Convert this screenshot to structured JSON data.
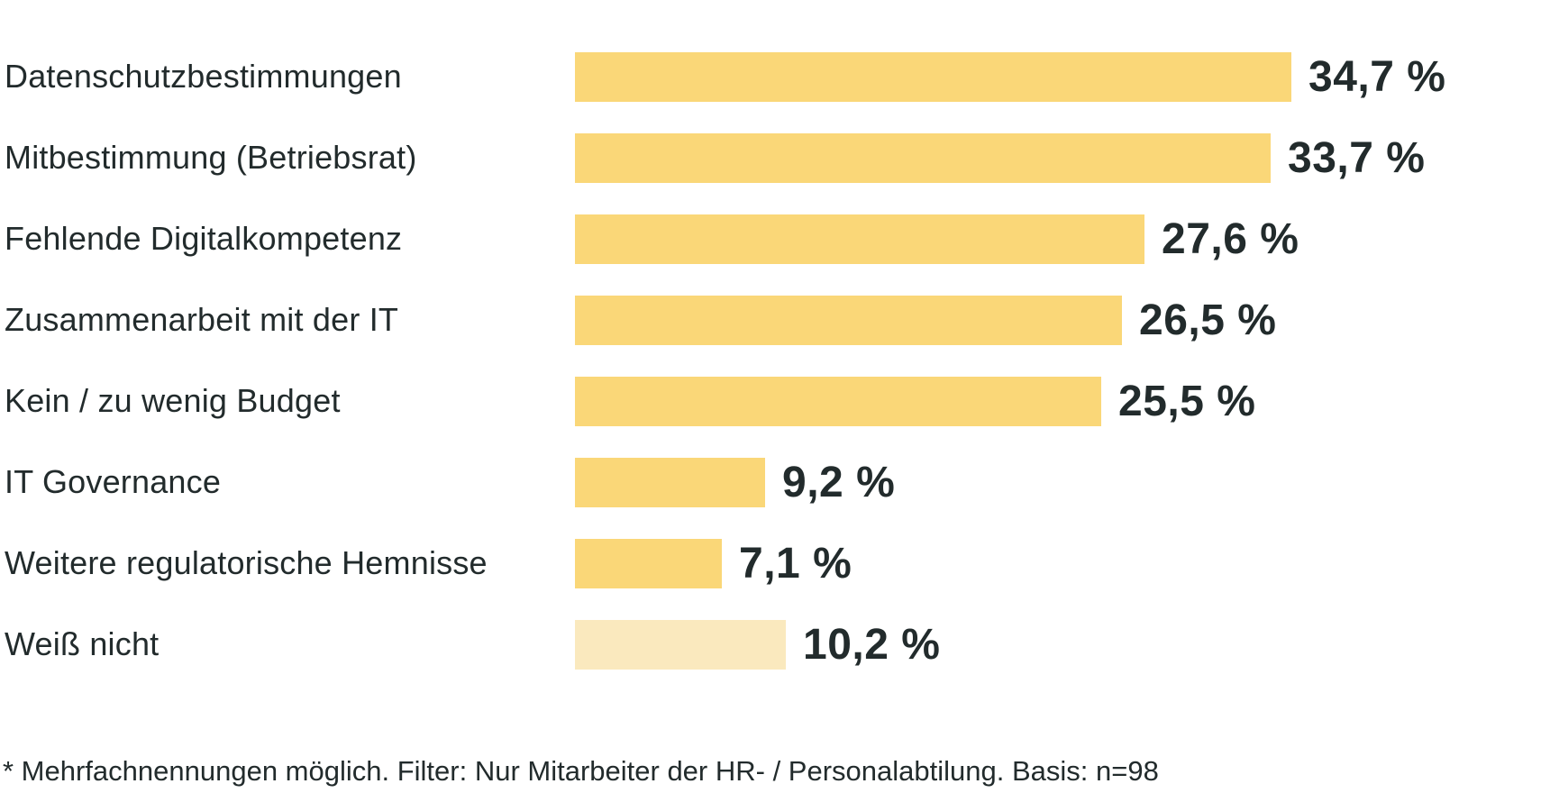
{
  "chart_data": {
    "type": "bar",
    "orientation": "horizontal",
    "title": "",
    "xlabel": "",
    "ylabel": "",
    "xlim": [
      0,
      36
    ],
    "grid": false,
    "legend": "none",
    "categories": [
      "Datenschutzbestimmungen",
      "Mitbestimmung (Betriebsrat)",
      "Fehlende Digitalkompetenz",
      "Zusammenarbeit mit der IT",
      "Kein / zu wenig Budget",
      "IT Governance",
      "Weitere regulatorische Hemnisse",
      "Weiß nicht"
    ],
    "values": [
      34.7,
      33.7,
      27.6,
      26.5,
      25.5,
      9.2,
      7.1,
      10.2
    ],
    "value_labels": [
      "34,7 %",
      "33,7 %",
      "27,6 %",
      "26,5 %",
      "25,5 %",
      "9,2 %",
      "7,1 %",
      "10,2 %"
    ],
    "bar_colors": [
      "#FAD778",
      "#FAD778",
      "#FAD778",
      "#FAD778",
      "#FAD778",
      "#FAD778",
      "#FAD778",
      "#FAE9BE"
    ],
    "footnote": "* Mehrfachnennungen möglich. Filter: Nur Mitarbeiter der HR- / Personalabtilung. Basis: n=98"
  },
  "colors": {
    "bar_main": "#FAD778",
    "bar_muted": "#FAE9BE",
    "text": "#222B2C",
    "background": "#FFFFFF"
  }
}
